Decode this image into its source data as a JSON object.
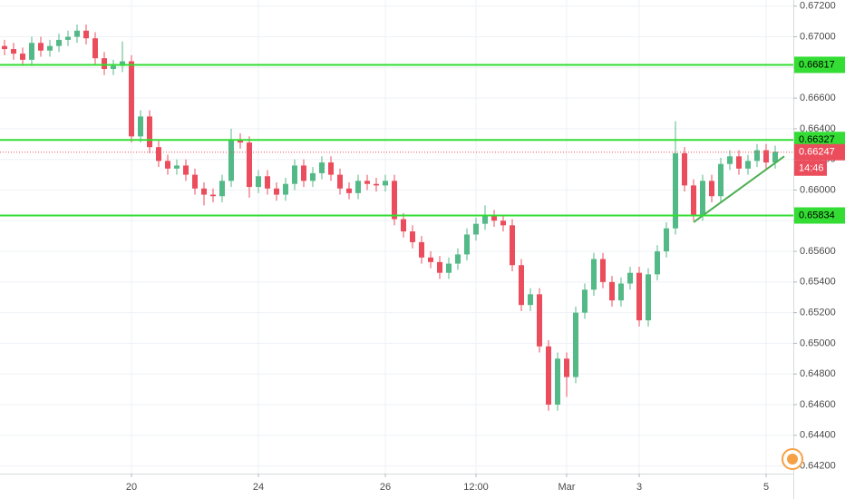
{
  "chart_data": {
    "type": "candlestick",
    "up_color": "#53b987",
    "down_color": "#eb4d5c",
    "grid": true,
    "x": [
      0,
      1,
      2,
      3,
      4,
      5,
      6,
      7,
      8,
      9,
      10,
      11,
      12,
      13,
      14,
      15,
      16,
      17,
      18,
      19,
      20,
      21,
      22,
      23,
      24,
      25,
      26,
      27,
      28,
      29,
      30,
      31,
      32,
      33,
      34,
      35,
      36,
      37,
      38,
      39,
      40,
      41,
      42,
      43,
      44,
      45,
      46,
      47,
      48,
      49,
      50,
      51,
      52,
      53,
      54,
      55,
      56,
      57,
      58,
      59,
      60,
      61,
      62,
      63,
      64,
      65,
      66,
      67,
      68,
      69,
      70,
      71,
      72,
      73,
      74,
      75,
      76,
      77,
      78,
      79,
      80,
      81,
      82,
      83,
      84,
      85
    ],
    "open": [
      0.6694,
      0.6692,
      0.6689,
      0.6685,
      0.6696,
      0.6691,
      0.6694,
      0.6698,
      0.67,
      0.6704,
      0.6699,
      0.6686,
      0.6679,
      0.6681,
      0.6684,
      0.6635,
      0.6648,
      0.6628,
      0.6619,
      0.6614,
      0.6616,
      0.661,
      0.6601,
      0.6597,
      0.6596,
      0.6606,
      0.6633,
      0.6631,
      0.6602,
      0.6609,
      0.6601,
      0.6597,
      0.6604,
      0.6616,
      0.6606,
      0.6611,
      0.6618,
      0.661,
      0.6601,
      0.6598,
      0.6606,
      0.6604,
      0.6603,
      0.6606,
      0.6581,
      0.6573,
      0.6566,
      0.6556,
      0.6553,
      0.6546,
      0.6552,
      0.6558,
      0.6571,
      0.6578,
      0.6583,
      0.658,
      0.6577,
      0.6551,
      0.6525,
      0.6532,
      0.6498,
      0.646,
      0.649,
      0.6478,
      0.652,
      0.6535,
      0.6555,
      0.654,
      0.6528,
      0.6539,
      0.6546,
      0.6515,
      0.6545,
      0.656,
      0.6575,
      0.6624,
      0.6603,
      0.6584,
      0.6606,
      0.6596,
      0.6617,
      0.6622,
      0.6614,
      0.6619,
      0.6626,
      0.6618
    ],
    "high": [
      0.6698,
      0.6696,
      0.6693,
      0.67,
      0.67,
      0.6698,
      0.6702,
      0.6704,
      0.6708,
      0.6708,
      0.6703,
      0.669,
      0.6685,
      0.6697,
      0.6688,
      0.6652,
      0.6652,
      0.6632,
      0.6623,
      0.662,
      0.662,
      0.6614,
      0.6605,
      0.6601,
      0.661,
      0.664,
      0.6637,
      0.6635,
      0.6613,
      0.6613,
      0.6605,
      0.6608,
      0.662,
      0.662,
      0.6615,
      0.6622,
      0.6622,
      0.6614,
      0.6605,
      0.661,
      0.661,
      0.6608,
      0.661,
      0.661,
      0.6585,
      0.6577,
      0.657,
      0.656,
      0.6557,
      0.6556,
      0.6562,
      0.6575,
      0.6582,
      0.659,
      0.6587,
      0.6584,
      0.6581,
      0.6555,
      0.6536,
      0.6536,
      0.6502,
      0.6494,
      0.6494,
      0.6524,
      0.6539,
      0.6559,
      0.6559,
      0.6544,
      0.6543,
      0.655,
      0.655,
      0.6549,
      0.6564,
      0.6579,
      0.6645,
      0.6628,
      0.6607,
      0.661,
      0.661,
      0.6621,
      0.6626,
      0.6626,
      0.6623,
      0.663,
      0.663,
      0.6629
    ],
    "low": [
      0.6688,
      0.6685,
      0.6681,
      0.6681,
      0.6687,
      0.6687,
      0.669,
      0.6694,
      0.6696,
      0.6695,
      0.6682,
      0.6675,
      0.6675,
      0.6677,
      0.6631,
      0.6631,
      0.6624,
      0.6615,
      0.661,
      0.661,
      0.6606,
      0.6597,
      0.659,
      0.6592,
      0.6592,
      0.6602,
      0.6627,
      0.6595,
      0.6598,
      0.6597,
      0.6593,
      0.6593,
      0.66,
      0.6602,
      0.6602,
      0.6607,
      0.6606,
      0.6597,
      0.6594,
      0.6594,
      0.66,
      0.6599,
      0.6599,
      0.6577,
      0.6569,
      0.6562,
      0.6552,
      0.6549,
      0.6542,
      0.6542,
      0.6548,
      0.6554,
      0.6567,
      0.6574,
      0.6576,
      0.6573,
      0.6547,
      0.6521,
      0.6521,
      0.6494,
      0.6456,
      0.6456,
      0.6465,
      0.6474,
      0.6516,
      0.6531,
      0.6536,
      0.6524,
      0.6524,
      0.6535,
      0.6511,
      0.6511,
      0.6541,
      0.6556,
      0.6571,
      0.6599,
      0.658,
      0.658,
      0.6592,
      0.6592,
      0.6613,
      0.661,
      0.661,
      0.6615,
      0.6614,
      0.6614
    ],
    "close": [
      0.6692,
      0.6689,
      0.6685,
      0.6696,
      0.6691,
      0.6694,
      0.6698,
      0.67,
      0.6704,
      0.6699,
      0.6686,
      0.6679,
      0.6681,
      0.6684,
      0.6635,
      0.6648,
      0.6628,
      0.6619,
      0.6614,
      0.6616,
      0.661,
      0.6601,
      0.6597,
      0.6596,
      0.6606,
      0.6633,
      0.6631,
      0.6602,
      0.6609,
      0.6601,
      0.6597,
      0.6604,
      0.6616,
      0.6606,
      0.6611,
      0.6618,
      0.661,
      0.6601,
      0.6598,
      0.6606,
      0.6604,
      0.6603,
      0.6606,
      0.6581,
      0.6573,
      0.6566,
      0.6556,
      0.6553,
      0.6546,
      0.6552,
      0.6558,
      0.6571,
      0.6578,
      0.6583,
      0.658,
      0.6577,
      0.6551,
      0.6525,
      0.6532,
      0.6498,
      0.646,
      0.649,
      0.6478,
      0.652,
      0.6535,
      0.6555,
      0.654,
      0.6528,
      0.6539,
      0.6546,
      0.6515,
      0.6545,
      0.656,
      0.6575,
      0.6624,
      0.6603,
      0.6584,
      0.6606,
      0.6596,
      0.6617,
      0.6622,
      0.6614,
      0.6619,
      0.6626,
      0.6618,
      0.6625
    ],
    "xlim": [
      -0.5,
      87
    ],
    "ylim": [
      0.6415,
      0.6724
    ],
    "xticks": [
      {
        "value": 14,
        "label": "20"
      },
      {
        "value": 28,
        "label": "24"
      },
      {
        "value": 42,
        "label": "26"
      },
      {
        "value": 52,
        "label": "12:00"
      },
      {
        "value": 62,
        "label": "Mar"
      },
      {
        "value": 70,
        "label": "3"
      },
      {
        "value": 84,
        "label": "5"
      }
    ],
    "yticks": [
      {
        "value": 0.642,
        "label": "0.64200"
      },
      {
        "value": 0.644,
        "label": "0.64400"
      },
      {
        "value": 0.646,
        "label": "0.64600"
      },
      {
        "value": 0.648,
        "label": "0.64800"
      },
      {
        "value": 0.65,
        "label": "0.65000"
      },
      {
        "value": 0.652,
        "label": "0.65200"
      },
      {
        "value": 0.654,
        "label": "0.65400"
      },
      {
        "value": 0.656,
        "label": "0.65600"
      },
      {
        "value": 0.658,
        "label": "0.65800"
      },
      {
        "value": 0.66,
        "label": "0.66000"
      },
      {
        "value": 0.662,
        "label": "0.66200"
      },
      {
        "value": 0.664,
        "label": "0.66400"
      },
      {
        "value": 0.666,
        "label": "0.66600"
      },
      {
        "value": 0.668,
        "label": "0.66800"
      },
      {
        "value": 0.67,
        "label": "0.67000"
      },
      {
        "value": 0.672,
        "label": "0.67200"
      }
    ],
    "levels": [
      {
        "value": 0.66817,
        "color": "#33dd33"
      },
      {
        "value": 0.66327,
        "color": "#33dd33"
      },
      {
        "value": 0.65834,
        "color": "#33dd33"
      }
    ],
    "current_price": 0.66247,
    "current_color": "#eb4d5c",
    "countdown": "14:46",
    "trendline": {
      "x": [
        76,
        86
      ],
      "y": [
        0.6579,
        0.6622
      ],
      "color": "#4caf50"
    }
  }
}
